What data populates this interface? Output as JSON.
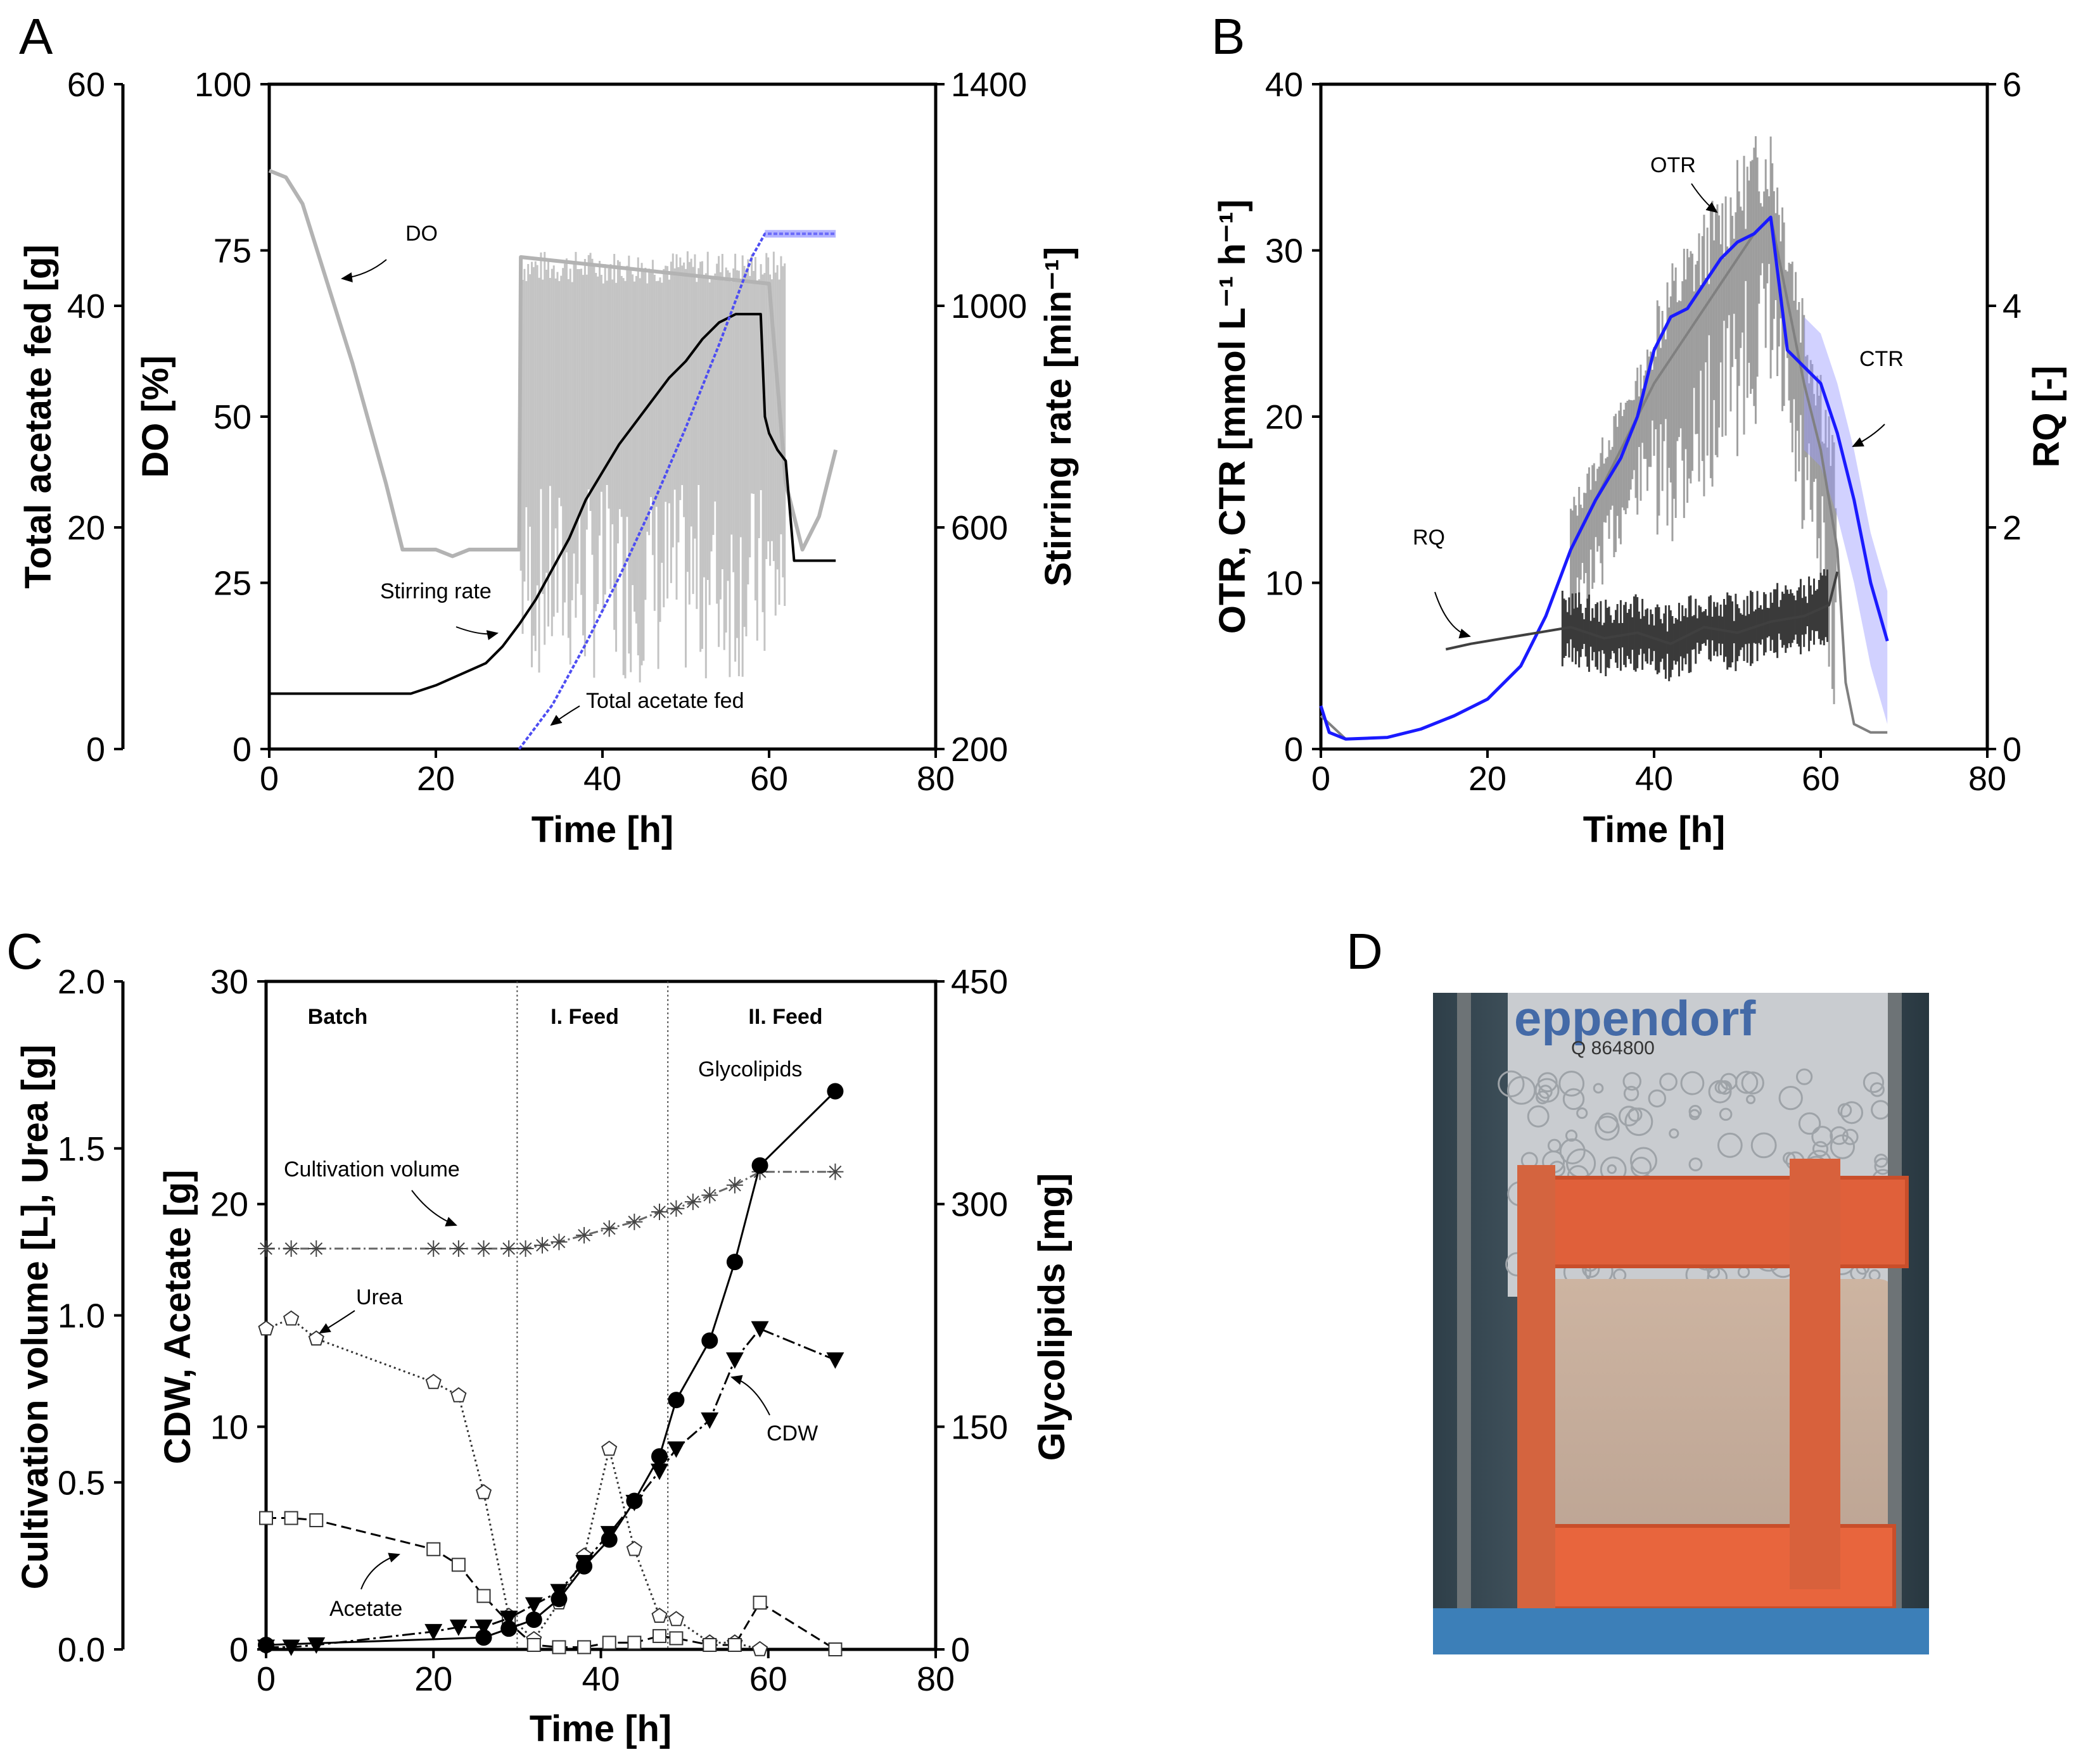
{
  "figure": {
    "panels": [
      "A",
      "B",
      "C",
      "D"
    ]
  },
  "chart_data": [
    {
      "panel": "A",
      "type": "line",
      "xlabel": "Time [h]",
      "xlim": [
        0,
        80
      ],
      "xticks": [
        "0",
        "20",
        "40",
        "60",
        "80"
      ],
      "axes": [
        {
          "label": "Total acetate fed [g]",
          "side": "outer-left",
          "lim": [
            0,
            60
          ],
          "ticks": [
            "0",
            "20",
            "40",
            "60"
          ]
        },
        {
          "label": "DO [%]",
          "side": "left",
          "lim": [
            0,
            100
          ],
          "ticks": [
            "0",
            "25",
            "50",
            "75",
            "100"
          ]
        },
        {
          "label": "Stirring rate [min⁻¹]",
          "side": "right",
          "lim": [
            200,
            1400
          ],
          "ticks": [
            "200",
            "600",
            "1000",
            "1400"
          ]
        }
      ],
      "annotations": [
        "DO",
        "Stirring rate",
        "Total acetate fed"
      ],
      "series": [
        {
          "name": "DO",
          "axis": "DO [%]",
          "color": "#b3b3b3",
          "x": [
            0,
            2,
            4,
            6,
            10,
            14,
            16,
            20,
            22,
            24,
            28,
            30,
            30.2,
            60,
            61,
            62,
            64,
            66,
            68
          ],
          "y": [
            87,
            86,
            82,
            74,
            58,
            40,
            30,
            30,
            29,
            30,
            30,
            30,
            74,
            70,
            55,
            40,
            30,
            35,
            45
          ]
        },
        {
          "name": "Stirring rate",
          "axis": "Stirring rate [min⁻¹]",
          "color": "#000000",
          "x": [
            0,
            17,
            20,
            23,
            26,
            28,
            30,
            32,
            34,
            36,
            38,
            40,
            42,
            44,
            46,
            48,
            50,
            52,
            54,
            56,
            58,
            59,
            59.5,
            60,
            61,
            62,
            63,
            68
          ],
          "y": [
            300,
            300,
            315,
            335,
            355,
            385,
            425,
            470,
            525,
            580,
            650,
            700,
            750,
            790,
            830,
            870,
            900,
            940,
            970,
            985,
            985,
            985,
            800,
            770,
            740,
            720,
            540,
            540
          ]
        },
        {
          "name": "Total acetate fed",
          "axis": "Total acetate fed [g]",
          "color": "#4d4df2",
          "x": [
            30,
            34,
            38,
            42,
            46,
            50,
            54,
            56,
            58,
            59.5,
            68
          ],
          "y": [
            0,
            4,
            9.5,
            15.5,
            22,
            29,
            36.5,
            40.5,
            44.5,
            46.5,
            46.5
          ]
        }
      ]
    },
    {
      "panel": "B",
      "type": "line",
      "xlabel": "Time [h]",
      "xlim": [
        0,
        80
      ],
      "xticks": [
        "0",
        "20",
        "40",
        "60",
        "80"
      ],
      "axes": [
        {
          "label": "OTR, CTR [mmol L⁻¹ h⁻¹]",
          "side": "left",
          "lim": [
            0,
            40
          ],
          "ticks": [
            "0",
            "10",
            "20",
            "30",
            "40"
          ]
        },
        {
          "label": "RQ [-]",
          "side": "right",
          "lim": [
            0,
            6
          ],
          "ticks": [
            "0",
            "2",
            "4",
            "6"
          ]
        }
      ],
      "annotations": [
        "OTR",
        "CTR",
        "RQ"
      ],
      "series": [
        {
          "name": "OTR",
          "axis": "OTR, CTR [mmol L⁻¹ h⁻¹]",
          "color": "#808080",
          "x": [
            0,
            3,
            8,
            12,
            16,
            20,
            24,
            27,
            30,
            33,
            36,
            40,
            44,
            48,
            52,
            54,
            56,
            58,
            60,
            62,
            63,
            64,
            66,
            68
          ],
          "y": [
            2,
            0.6,
            0.7,
            1.2,
            2,
            3,
            5,
            8,
            12,
            15,
            18,
            22,
            25,
            28,
            31,
            32,
            27,
            22,
            18,
            12,
            4,
            1.5,
            1,
            1
          ]
        },
        {
          "name": "CTR",
          "axis": "OTR, CTR [mmol L⁻¹ h⁻¹]",
          "color": "#1a1aff",
          "x": [
            0,
            1,
            3,
            8,
            12,
            16,
            20,
            24,
            27,
            30,
            33,
            36,
            38,
            40,
            42,
            44,
            46,
            48,
            50,
            52,
            54,
            56,
            58,
            60,
            62,
            64,
            66,
            68
          ],
          "y": [
            2.6,
            1,
            0.6,
            0.7,
            1.2,
            2,
            3,
            5,
            8,
            12,
            15,
            17.5,
            20,
            24,
            26,
            26.5,
            28,
            29.5,
            30.5,
            31,
            32,
            24,
            23,
            22,
            19,
            15,
            10,
            6.5
          ]
        },
        {
          "name": "RQ",
          "axis": "RQ [-]",
          "color": "#404040",
          "x": [
            15,
            18,
            22,
            26,
            30,
            34,
            38,
            42,
            46,
            50,
            54,
            58,
            61,
            62
          ],
          "y": [
            0.9,
            0.95,
            1.0,
            1.05,
            1.1,
            1.0,
            1.05,
            0.95,
            1.1,
            1.05,
            1.15,
            1.2,
            1.3,
            1.6
          ]
        }
      ]
    },
    {
      "panel": "C",
      "type": "scatter",
      "xlabel": "Time [h]",
      "xlim": [
        0,
        80
      ],
      "xticks": [
        "0",
        "20",
        "40",
        "60",
        "80"
      ],
      "axes": [
        {
          "label": "Cultivation volume [L], Urea [g]",
          "side": "outer-left",
          "lim": [
            0,
            2.0
          ],
          "ticks": [
            "0.0",
            "0.5",
            "1.0",
            "1.5",
            "2.0"
          ]
        },
        {
          "label": "CDW, Acetate [g]",
          "side": "left",
          "lim": [
            0,
            30
          ],
          "ticks": [
            "0",
            "10",
            "20",
            "30"
          ]
        },
        {
          "label": "Glycolipids [mg]",
          "side": "right",
          "lim": [
            0,
            450
          ],
          "ticks": [
            "0",
            "150",
            "300",
            "450"
          ]
        }
      ],
      "phases": [
        {
          "label": "Batch",
          "start": 0,
          "end": 30
        },
        {
          "label": "I. Feed",
          "start": 30,
          "end": 48
        },
        {
          "label": "II. Feed",
          "start": 48,
          "end": 80
        }
      ],
      "annotations": [
        "Glycolipids",
        "Cultivation volume",
        "Urea",
        "Acetate",
        "CDW"
      ],
      "series": [
        {
          "name": "Cultivation volume",
          "axis": "Cultivation volume [L], Urea [g]",
          "marker": "asterisk",
          "x": [
            0,
            3,
            6,
            20,
            23,
            26,
            29,
            31,
            33,
            35,
            38,
            41,
            44,
            47,
            49,
            51,
            53,
            56,
            59,
            68
          ],
          "y": [
            1.2,
            1.2,
            1.2,
            1.2,
            1.2,
            1.2,
            1.2,
            1.2,
            1.21,
            1.22,
            1.24,
            1.26,
            1.28,
            1.31,
            1.32,
            1.34,
            1.36,
            1.39,
            1.43,
            1.43
          ]
        },
        {
          "name": "Urea",
          "axis": "Cultivation volume [L], Urea [g]",
          "marker": "pentagon",
          "x": [
            0,
            3,
            6,
            20,
            23,
            26,
            29,
            32,
            35,
            38,
            41,
            44,
            47,
            49,
            53,
            56,
            59
          ],
          "y": [
            0.96,
            0.99,
            0.93,
            0.8,
            0.76,
            0.47,
            0.1,
            0.03,
            0.14,
            0.28,
            0.6,
            0.3,
            0.1,
            0.09,
            0.02,
            0.02,
            0.0
          ]
        },
        {
          "name": "Acetate",
          "axis": "CDW, Acetate [g]",
          "marker": "square",
          "x": [
            0,
            3,
            6,
            20,
            23,
            26,
            29,
            32,
            35,
            38,
            41,
            44,
            47,
            49,
            53,
            56,
            59,
            68
          ],
          "y": [
            5.9,
            5.9,
            5.8,
            4.5,
            3.8,
            2.4,
            1.2,
            0.2,
            0.1,
            0.1,
            0.3,
            0.3,
            0.6,
            0.5,
            0.2,
            0.2,
            2.1,
            0.0
          ]
        },
        {
          "name": "CDW",
          "axis": "CDW, Acetate [g]",
          "marker": "triangle-down",
          "x": [
            0,
            3,
            6,
            20,
            23,
            26,
            29,
            32,
            35,
            38,
            41,
            44,
            47,
            49,
            53,
            56,
            59,
            68
          ],
          "y": [
            0.1,
            0.1,
            0.2,
            0.8,
            1.0,
            1.0,
            1.4,
            2.0,
            2.6,
            3.9,
            5.2,
            6.6,
            8.0,
            9.0,
            10.3,
            13.0,
            14.4,
            13.0
          ]
        },
        {
          "name": "Glycolipids",
          "axis": "Glycolipids [mg]",
          "marker": "circle",
          "x": [
            0,
            26,
            29,
            32,
            35,
            38,
            41,
            44,
            47,
            49,
            53,
            56,
            59,
            68
          ],
          "y": [
            3,
            8,
            14,
            20,
            34,
            56,
            74,
            100,
            130,
            168,
            208,
            261,
            326,
            376
          ]
        }
      ]
    }
  ],
  "photo": {
    "panel": "D",
    "brand_text": "eppendorf",
    "serial_text": "Q 864800"
  }
}
